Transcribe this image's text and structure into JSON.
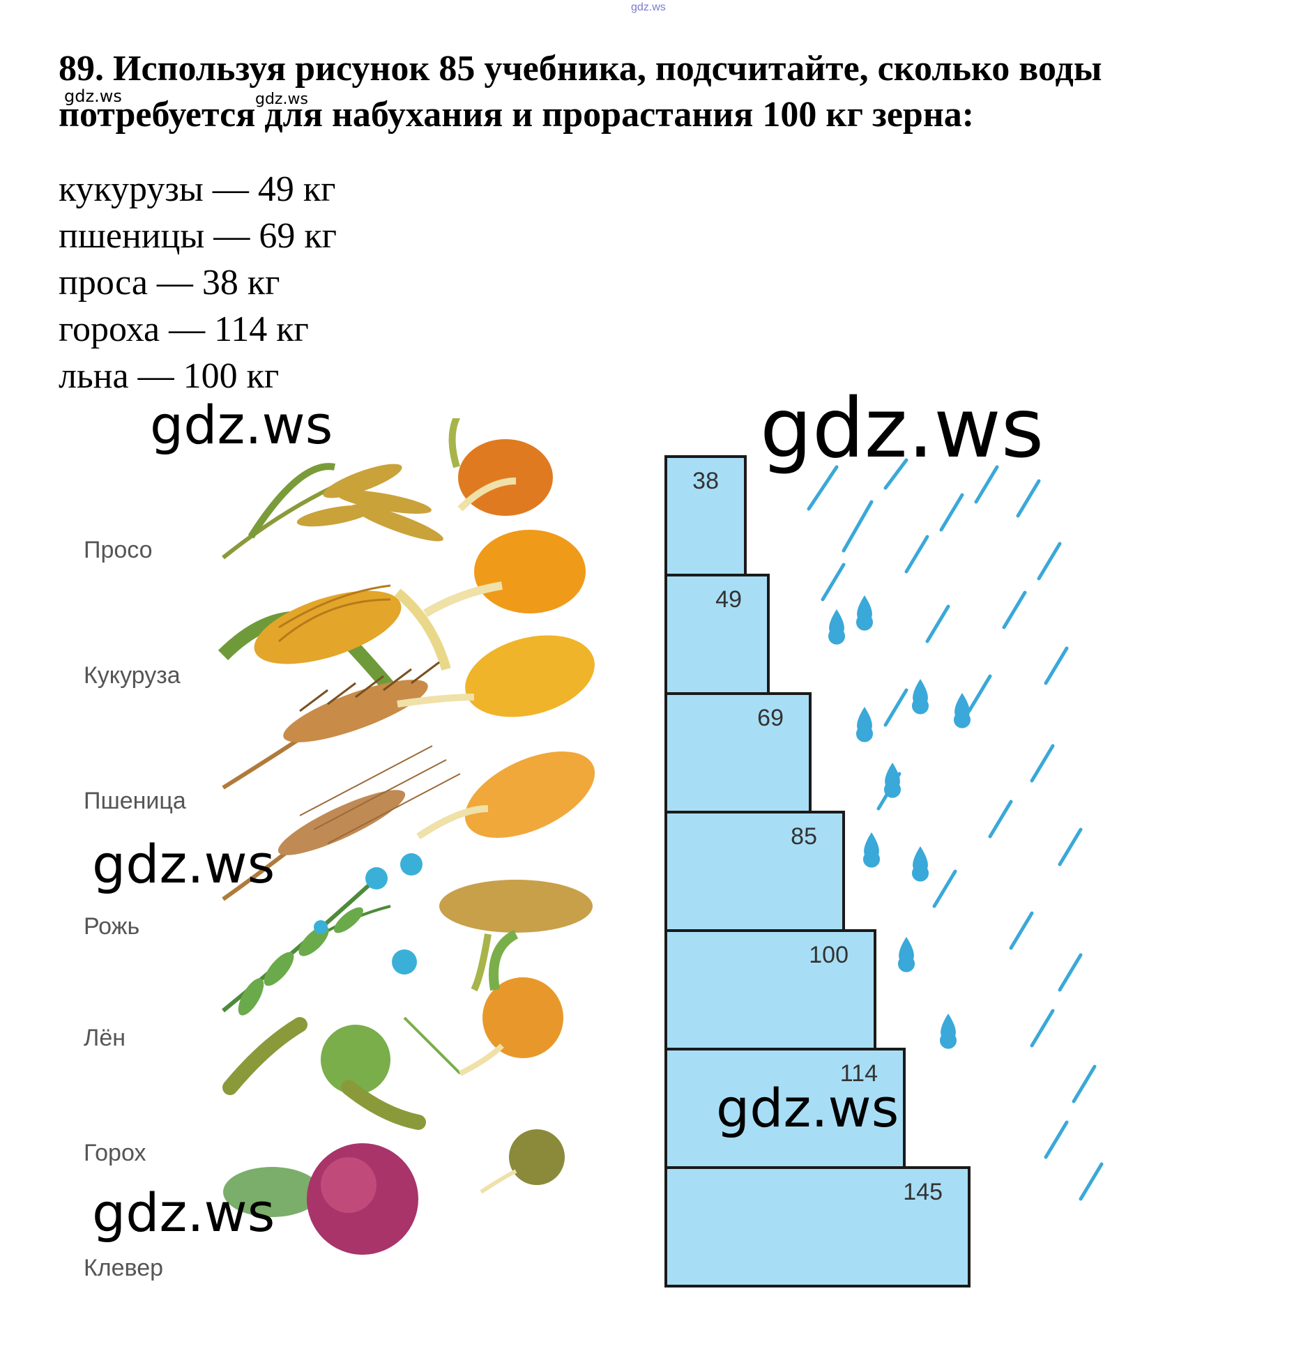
{
  "watermarks": {
    "top": "gdz.ws",
    "small": [
      "gdz.ws",
      "gdz.ws"
    ],
    "large": [
      "gdz.ws",
      "gdz.ws",
      "gdz.ws",
      "gdz.ws",
      "gdz.ws"
    ]
  },
  "task": {
    "text": "89. Используя рисунок 85 учебника, подсчитайте, сколько воды потребуется для набухания и прорастания 100 кг зерна:"
  },
  "answers": [
    "кукурузы — 49 кг",
    "пшеницы — 69 кг",
    "проса — 38 кг",
    "гороха — 114 кг",
    "льна — 100 кг"
  ],
  "figure": {
    "colors": {
      "bar": "#a8def5",
      "bar_stroke": "#1a1a1a",
      "rain": "#3aa8d8"
    },
    "chart_data": {
      "type": "bar",
      "orientation": "horizontal",
      "categories": [
        "Просо",
        "Кукуруза",
        "Пшеница",
        "Рожь",
        "Лён",
        "Горох",
        "Клевер"
      ],
      "values": [
        38,
        49,
        69,
        85,
        100,
        114,
        145
      ],
      "value_labels": [
        "38",
        "49",
        "69",
        "85",
        "100",
        "114",
        "145"
      ],
      "title": "",
      "xlabel": "",
      "ylabel": "",
      "grid": false
    }
  }
}
